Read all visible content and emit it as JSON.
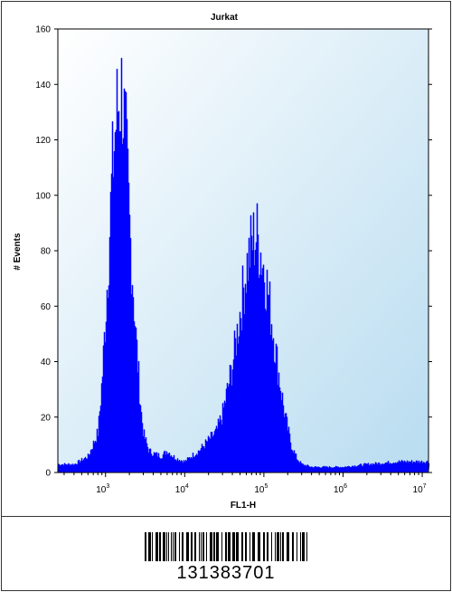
{
  "chart_data": {
    "type": "area",
    "title": "Jurkat",
    "xlabel": "FL1-H",
    "ylabel": "# Events",
    "xscale": "log",
    "xlim": [
      250,
      12000000
    ],
    "ylim": [
      0,
      160
    ],
    "yticks": [
      0,
      20,
      40,
      60,
      80,
      100,
      120,
      140,
      160
    ],
    "xticks": [
      {
        "base": "10",
        "exp": "3",
        "value": 1000
      },
      {
        "base": "10",
        "exp": "4",
        "value": 10000
      },
      {
        "base": "10",
        "exp": "5",
        "value": 100000
      },
      {
        "base": "10",
        "exp": "6",
        "value": 1000000
      },
      {
        "base": "10",
        "exp": "7",
        "value": 10000000
      }
    ],
    "series": [
      {
        "x": [
          250,
          400,
          600,
          800,
          900,
          1000,
          1100,
          1200,
          1300,
          1400,
          1500,
          1600,
          1700,
          1800,
          1900,
          2000,
          2200,
          2400,
          2600,
          2800,
          3000,
          3500,
          4000,
          5000,
          6000,
          7000,
          8000,
          10000,
          12000,
          15000,
          20000,
          25000,
          30000,
          40000,
          50000,
          60000,
          70000,
          80000,
          90000,
          100000,
          110000,
          130000,
          150000,
          180000,
          220000,
          260000,
          300000,
          400000,
          600000,
          1000000,
          2000000,
          5000000,
          12000000
        ],
        "values": [
          3,
          3,
          6,
          15,
          35,
          60,
          85,
          110,
          125,
          135,
          138,
          142,
          130,
          120,
          105,
          90,
          70,
          50,
          35,
          22,
          14,
          8,
          7,
          6,
          8,
          6,
          5,
          4,
          6,
          8,
          12,
          15,
          22,
          40,
          60,
          76,
          85,
          88,
          82,
          75,
          68,
          52,
          38,
          22,
          10,
          5,
          3,
          2,
          2,
          2,
          3,
          4,
          4
        ]
      }
    ],
    "colors": {
      "fill": "#0000ff",
      "plot_background_top": "#ffffff",
      "plot_background_bottom": "#b8dcf0"
    }
  },
  "barcode": {
    "number": "131383701"
  }
}
